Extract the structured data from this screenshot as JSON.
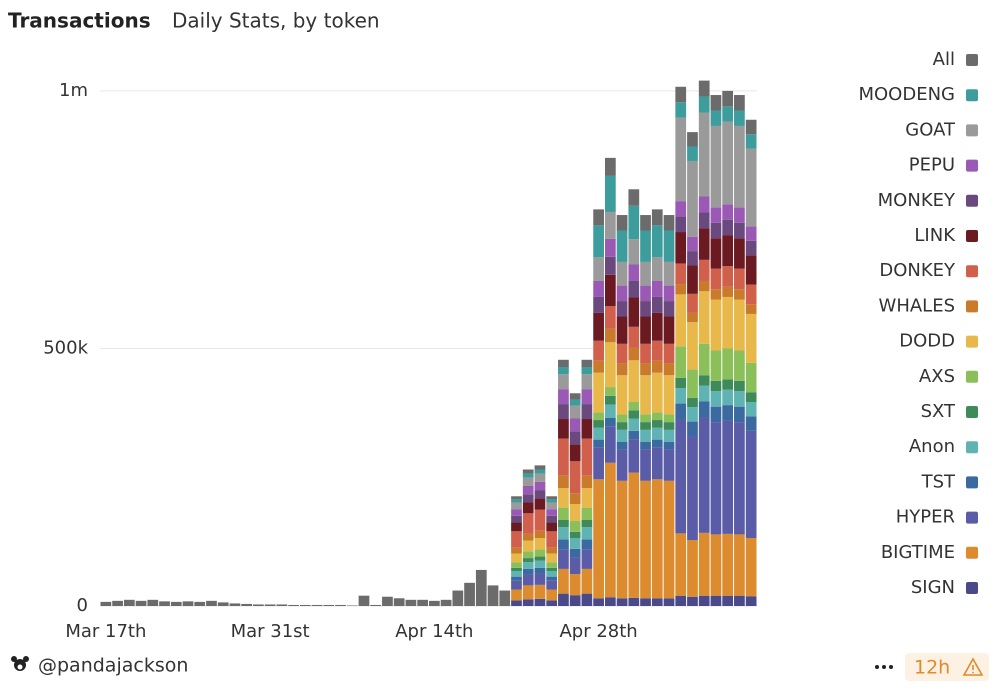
{
  "chart_data": {
    "type": "stacked_bar",
    "title": "Transactions",
    "subtitle": "Daily Stats, by token",
    "categories": [
      "Mar 17th",
      null,
      null,
      null,
      null,
      null,
      null,
      null,
      null,
      null,
      null,
      null,
      null,
      null,
      "Mar 31st",
      null,
      null,
      null,
      null,
      null,
      null,
      null,
      null,
      null,
      null,
      null,
      null,
      null,
      "Apr 14th",
      null,
      null,
      null,
      null,
      null,
      null,
      null,
      null,
      null,
      null,
      null,
      null,
      null,
      "Apr 28th",
      null,
      null,
      null,
      null,
      null,
      null,
      null,
      null,
      null,
      null,
      null,
      null,
      null
    ],
    "ylim": [
      0,
      1060000
    ],
    "yticks": [
      0,
      {
        "value": 500000,
        "label": "500k"
      },
      {
        "value": 1000000,
        "label": "1m"
      }
    ],
    "grid": true,
    "legend": "right",
    "series": [
      {
        "name": "All",
        "color": "#6b6b6b",
        "values": [
          8000,
          10000,
          12000,
          10000,
          12000,
          9000,
          8000,
          9000,
          8000,
          10000,
          7000,
          5000,
          4000,
          3000,
          3000,
          3000,
          2000,
          2000,
          2000,
          2000,
          2000,
          1000,
          20000,
          2000,
          18000,
          15000,
          12000,
          12000,
          10000,
          12000,
          30000,
          45000,
          70000,
          40000,
          30000,
          6000,
          8000,
          8000,
          6000,
          14000,
          12000,
          14000,
          31000,
          35000,
          30000,
          32000,
          30000,
          31000,
          30000,
          30000,
          28000,
          31000,
          30000,
          30000,
          30000,
          28000
        ]
      },
      {
        "name": "MOODENG",
        "color": "#3d9c9c",
        "values": [
          0,
          0,
          0,
          0,
          0,
          0,
          0,
          0,
          0,
          0,
          0,
          0,
          0,
          0,
          0,
          0,
          0,
          0,
          0,
          0,
          0,
          0,
          0,
          0,
          0,
          0,
          0,
          0,
          0,
          0,
          0,
          0,
          0,
          0,
          0,
          6000,
          8000,
          8000,
          6000,
          14000,
          12000,
          14000,
          62000,
          70000,
          61000,
          65000,
          61000,
          62000,
          61000,
          30000,
          28000,
          31000,
          30000,
          30000,
          30000,
          28000
        ]
      },
      {
        "name": "GOAT",
        "color": "#9a9a9a",
        "values": [
          0,
          0,
          0,
          0,
          0,
          0,
          0,
          0,
          0,
          0,
          0,
          0,
          0,
          0,
          0,
          0,
          0,
          0,
          0,
          0,
          0,
          0,
          0,
          0,
          0,
          0,
          0,
          0,
          0,
          0,
          0,
          0,
          0,
          0,
          0,
          13000,
          16000,
          16000,
          13000,
          29000,
          25000,
          29000,
          46000,
          52000,
          46000,
          49000,
          46000,
          46000,
          46000,
          162000,
          147000,
          163000,
          158000,
          160000,
          158000,
          151000
        ]
      },
      {
        "name": "PEPU",
        "color": "#9b59b6",
        "values": [
          0,
          0,
          0,
          0,
          0,
          0,
          0,
          0,
          0,
          0,
          0,
          0,
          0,
          0,
          0,
          0,
          0,
          0,
          0,
          0,
          0,
          0,
          0,
          0,
          0,
          0,
          0,
          0,
          0,
          0,
          0,
          0,
          0,
          0,
          0,
          13000,
          16000,
          16000,
          13000,
          29000,
          25000,
          29000,
          31000,
          35000,
          30000,
          32000,
          30000,
          31000,
          30000,
          30000,
          28000,
          31000,
          30000,
          30000,
          30000,
          28000
        ]
      },
      {
        "name": "MONKEY",
        "color": "#6a4a7e",
        "values": [
          0,
          0,
          0,
          0,
          0,
          0,
          0,
          0,
          0,
          0,
          0,
          0,
          0,
          0,
          0,
          0,
          0,
          0,
          0,
          0,
          0,
          0,
          0,
          0,
          0,
          0,
          0,
          0,
          0,
          0,
          0,
          0,
          0,
          0,
          0,
          13000,
          16000,
          16000,
          13000,
          29000,
          25000,
          29000,
          31000,
          35000,
          30000,
          32000,
          30000,
          31000,
          30000,
          30000,
          28000,
          31000,
          30000,
          30000,
          30000,
          28000
        ]
      },
      {
        "name": "LINK",
        "color": "#6b1a22",
        "values": [
          0,
          0,
          0,
          0,
          0,
          0,
          0,
          0,
          0,
          0,
          0,
          0,
          0,
          0,
          0,
          0,
          0,
          0,
          0,
          0,
          0,
          0,
          0,
          0,
          0,
          0,
          0,
          0,
          0,
          0,
          0,
          0,
          0,
          0,
          0,
          17000,
          21000,
          22000,
          17000,
          38000,
          33000,
          38000,
          54000,
          61000,
          53000,
          57000,
          53000,
          54000,
          53000,
          61000,
          55000,
          61000,
          59000,
          60000,
          59000,
          57000
        ]
      },
      {
        "name": "DONKEY",
        "color": "#d0604c",
        "values": [
          0,
          0,
          0,
          0,
          0,
          0,
          0,
          0,
          0,
          0,
          0,
          0,
          0,
          0,
          0,
          0,
          0,
          0,
          0,
          0,
          0,
          0,
          0,
          0,
          0,
          0,
          0,
          0,
          0,
          0,
          0,
          0,
          0,
          0,
          0,
          32000,
          40000,
          41000,
          32000,
          72000,
          62000,
          72000,
          39000,
          44000,
          38000,
          41000,
          38000,
          39000,
          38000,
          40000,
          37000,
          41000,
          40000,
          40000,
          40000,
          38000
        ]
      },
      {
        "name": "WHALES",
        "color": "#c97a2a",
        "values": [
          0,
          0,
          0,
          0,
          0,
          0,
          0,
          0,
          0,
          0,
          0,
          0,
          0,
          0,
          0,
          0,
          0,
          0,
          0,
          0,
          0,
          0,
          0,
          0,
          0,
          0,
          0,
          0,
          0,
          0,
          0,
          0,
          0,
          0,
          0,
          11000,
          13000,
          14000,
          11000,
          24000,
          21000,
          24000,
          23000,
          26000,
          23000,
          24000,
          23000,
          23000,
          23000,
          20000,
          18000,
          20000,
          20000,
          20000,
          20000,
          19000
        ]
      },
      {
        "name": "DODD",
        "color": "#e8b84a",
        "values": [
          0,
          0,
          0,
          0,
          0,
          0,
          0,
          0,
          0,
          0,
          0,
          0,
          0,
          0,
          0,
          0,
          0,
          0,
          0,
          0,
          0,
          0,
          0,
          0,
          0,
          0,
          0,
          0,
          0,
          0,
          0,
          0,
          0,
          0,
          0,
          17000,
          21000,
          22000,
          17000,
          38000,
          33000,
          38000,
          77000,
          87000,
          76000,
          81000,
          76000,
          77000,
          76000,
          101000,
          92000,
          102000,
          99000,
          100000,
          99000,
          95000
        ]
      },
      {
        "name": "AXS",
        "color": "#8bbf5a",
        "values": [
          0,
          0,
          0,
          0,
          0,
          0,
          0,
          0,
          0,
          0,
          0,
          0,
          0,
          0,
          0,
          0,
          0,
          0,
          0,
          0,
          0,
          0,
          0,
          0,
          0,
          0,
          0,
          0,
          0,
          0,
          0,
          0,
          0,
          0,
          0,
          11000,
          13000,
          14000,
          11000,
          24000,
          21000,
          24000,
          15000,
          17000,
          15000,
          16000,
          15000,
          15000,
          15000,
          61000,
          55000,
          61000,
          59000,
          60000,
          59000,
          57000
        ]
      },
      {
        "name": "SXT",
        "color": "#3f8a5a",
        "values": [
          0,
          0,
          0,
          0,
          0,
          0,
          0,
          0,
          0,
          0,
          0,
          0,
          0,
          0,
          0,
          0,
          0,
          0,
          0,
          0,
          0,
          0,
          0,
          0,
          0,
          0,
          0,
          0,
          0,
          0,
          0,
          0,
          0,
          0,
          0,
          6000,
          8000,
          8000,
          6000,
          14000,
          12000,
          14000,
          15000,
          17000,
          15000,
          16000,
          15000,
          15000,
          15000,
          20000,
          18000,
          20000,
          20000,
          20000,
          20000,
          19000
        ]
      },
      {
        "name": "Anon",
        "color": "#5fb3b3",
        "values": [
          0,
          0,
          0,
          0,
          0,
          0,
          0,
          0,
          0,
          0,
          0,
          0,
          0,
          0,
          0,
          0,
          0,
          0,
          0,
          0,
          0,
          0,
          0,
          0,
          0,
          0,
          0,
          0,
          0,
          0,
          0,
          0,
          0,
          0,
          0,
          11000,
          13000,
          14000,
          11000,
          24000,
          21000,
          24000,
          23000,
          26000,
          23000,
          24000,
          23000,
          23000,
          23000,
          30000,
          28000,
          31000,
          30000,
          30000,
          30000,
          28000
        ]
      },
      {
        "name": "TST",
        "color": "#3a6aa0",
        "values": [
          0,
          0,
          0,
          0,
          0,
          0,
          0,
          0,
          0,
          0,
          0,
          0,
          0,
          0,
          0,
          0,
          0,
          0,
          0,
          0,
          0,
          0,
          0,
          0,
          0,
          0,
          0,
          0,
          0,
          0,
          0,
          0,
          0,
          0,
          0,
          8000,
          11000,
          11000,
          8000,
          19000,
          16000,
          19000,
          15000,
          17000,
          15000,
          16000,
          15000,
          15000,
          15000,
          30000,
          28000,
          31000,
          30000,
          30000,
          30000,
          28000
        ]
      },
      {
        "name": "HYPER",
        "color": "#5b5ca8",
        "values": [
          0,
          0,
          0,
          0,
          0,
          0,
          0,
          0,
          0,
          0,
          0,
          0,
          0,
          0,
          0,
          0,
          0,
          0,
          0,
          0,
          0,
          0,
          0,
          0,
          0,
          0,
          0,
          0,
          0,
          0,
          0,
          0,
          0,
          0,
          0,
          17000,
          21000,
          22000,
          17000,
          38000,
          33000,
          38000,
          62000,
          70000,
          61000,
          65000,
          61000,
          62000,
          61000,
          222000,
          202000,
          224000,
          218000,
          220000,
          218000,
          208000
        ]
      },
      {
        "name": "BIGTIME",
        "color": "#dc8c2e",
        "values": [
          0,
          0,
          0,
          0,
          0,
          0,
          0,
          0,
          0,
          0,
          0,
          0,
          0,
          0,
          0,
          0,
          0,
          0,
          0,
          0,
          0,
          0,
          0,
          0,
          0,
          0,
          0,
          0,
          0,
          0,
          0,
          0,
          0,
          0,
          0,
          21000,
          27000,
          27000,
          21000,
          48000,
          41000,
          48000,
          231000,
          261000,
          228000,
          243000,
          228000,
          231000,
          228000,
          121000,
          110000,
          122000,
          119000,
          120000,
          119000,
          113000
        ]
      },
      {
        "name": "SIGN",
        "color": "#4a4a8a",
        "values": [
          0,
          0,
          0,
          0,
          0,
          0,
          0,
          0,
          0,
          0,
          0,
          0,
          0,
          0,
          0,
          0,
          0,
          0,
          0,
          0,
          0,
          0,
          0,
          0,
          0,
          0,
          0,
          0,
          0,
          0,
          0,
          0,
          0,
          0,
          0,
          11000,
          13000,
          14000,
          11000,
          24000,
          21000,
          24000,
          15000,
          17000,
          15000,
          16000,
          15000,
          15000,
          15000,
          20000,
          18000,
          20000,
          20000,
          20000,
          20000,
          19000
        ]
      }
    ]
  },
  "footer": {
    "author": "@pandajackson",
    "refresh": "12h"
  }
}
